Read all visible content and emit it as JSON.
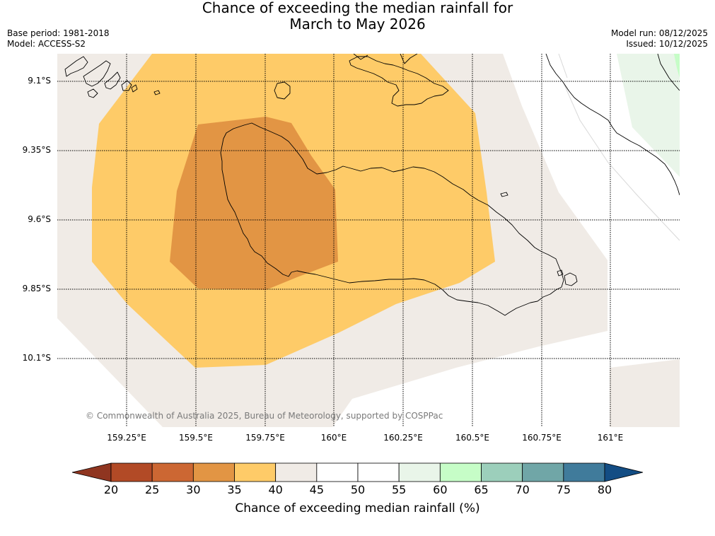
{
  "title": {
    "line1": "Chance of exceeding the median rainfall for",
    "line2": "March to May 2026"
  },
  "meta": {
    "base_period": "Base period: 1981-2018",
    "model": "Model: ACCESS-S2",
    "model_run": "Model run: 08/12/2025",
    "issued": "Issued: 10/12/2025"
  },
  "map": {
    "latitude_labels": [
      "9.1°S",
      "9.35°S",
      "9.6°S",
      "9.85°S",
      "10.1°S"
    ],
    "longitude_labels": [
      "159.25°E",
      "159.5°E",
      "159.75°E",
      "160°E",
      "160.25°E",
      "160.5°E",
      "160.75°E",
      "161°E"
    ],
    "copyright": "© Commonwealth of Australia 2025, Bureau of Meteorology, supported by COSPPac"
  },
  "colorbar": {
    "ticks": [
      "20",
      "25",
      "30",
      "35",
      "40",
      "45",
      "50",
      "55",
      "60",
      "65",
      "70",
      "75",
      "80"
    ],
    "colors": [
      "#b24a26",
      "#cc6733",
      "#e29544",
      "#fecb68",
      "#f0ebe6",
      "#ffffff",
      "#ffffff",
      "#e9f5e9",
      "#c6fdc7",
      "#9ccfbb",
      "#70a6a7",
      "#407b9b"
    ],
    "under_color": "#8f3520",
    "over_color": "#134d84",
    "label": "Chance of exceeding median rainfall (%)"
  }
}
